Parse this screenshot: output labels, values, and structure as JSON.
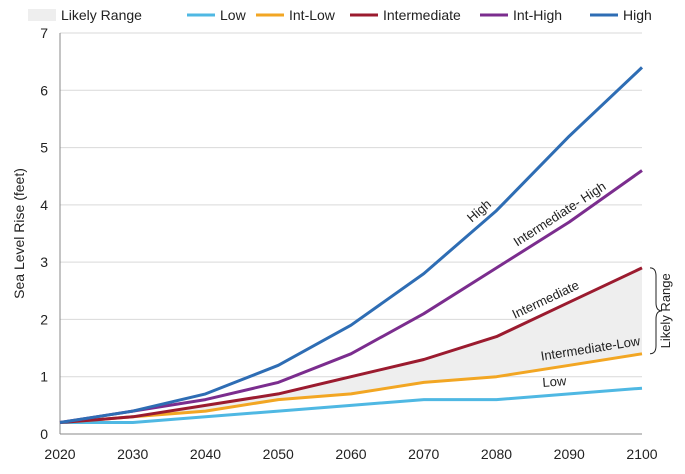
{
  "chart_data": {
    "type": "line",
    "title": "",
    "xlabel": "",
    "ylabel": "Sea Level Rise (feet)",
    "xlim": [
      2020,
      2100
    ],
    "ylim": [
      0,
      7
    ],
    "x_ticks": [
      "2020",
      "2030",
      "2040",
      "2050",
      "2060",
      "2070",
      "2080",
      "2090",
      "2100"
    ],
    "y_ticks": [
      "0",
      "1",
      "2",
      "3",
      "4",
      "5",
      "6",
      "7"
    ],
    "grid": "horizontal",
    "legend_position": "top",
    "legend": [
      {
        "name": "Likely Range",
        "color": "#eeeeee",
        "kind": "area"
      },
      {
        "name": "Low",
        "color": "#4fb8e3",
        "kind": "line"
      },
      {
        "name": "Int-Low",
        "color": "#f2a623",
        "kind": "line"
      },
      {
        "name": "Intermediate",
        "color": "#9b1b2f",
        "kind": "line"
      },
      {
        "name": "Int-High",
        "color": "#7b2d8e",
        "kind": "line"
      },
      {
        "name": "High",
        "color": "#2e6db4",
        "kind": "line"
      }
    ],
    "x": [
      2020,
      2025,
      2030,
      2040,
      2050,
      2060,
      2070,
      2080,
      2090,
      2100
    ],
    "series": [
      {
        "key": "low",
        "name": "Low",
        "color": "#4fb8e3",
        "values": [
          0.2,
          0.2,
          0.2,
          0.3,
          0.4,
          0.5,
          0.6,
          0.6,
          0.7,
          0.8
        ]
      },
      {
        "key": "int_low",
        "name": "Int-Low",
        "color": "#f2a623",
        "values": [
          0.2,
          0.25,
          0.3,
          0.4,
          0.6,
          0.7,
          0.9,
          1.0,
          1.2,
          1.4
        ]
      },
      {
        "key": "intermediate",
        "name": "Intermediate",
        "color": "#9b1b2f",
        "values": [
          0.2,
          0.25,
          0.3,
          0.5,
          0.7,
          1.0,
          1.3,
          1.7,
          2.3,
          2.9
        ]
      },
      {
        "key": "int_high",
        "name": "Int-High",
        "color": "#7b2d8e",
        "values": [
          0.2,
          0.3,
          0.4,
          0.6,
          0.9,
          1.4,
          2.1,
          2.9,
          3.7,
          4.6
        ]
      },
      {
        "key": "high",
        "name": "High",
        "color": "#2e6db4",
        "values": [
          0.2,
          0.3,
          0.4,
          0.7,
          1.2,
          1.9,
          2.8,
          3.9,
          5.2,
          6.4
        ]
      }
    ],
    "likely_range": {
      "label": "Likely Range",
      "lower_series": "Int-Low",
      "upper_series": "Intermediate",
      "color": "#eeeeee"
    },
    "annotations": [
      {
        "text": "High",
        "series": "High",
        "x": 2078
      },
      {
        "text": "Intermediate- High",
        "series": "Int-High",
        "x": 2089
      },
      {
        "text": "Intermediate",
        "series": "Intermediate",
        "x": 2087
      },
      {
        "text": "Intermediate-Low",
        "series": "Int-Low",
        "x": 2093
      },
      {
        "text": "Low",
        "series": "Low",
        "x": 2088
      }
    ]
  }
}
